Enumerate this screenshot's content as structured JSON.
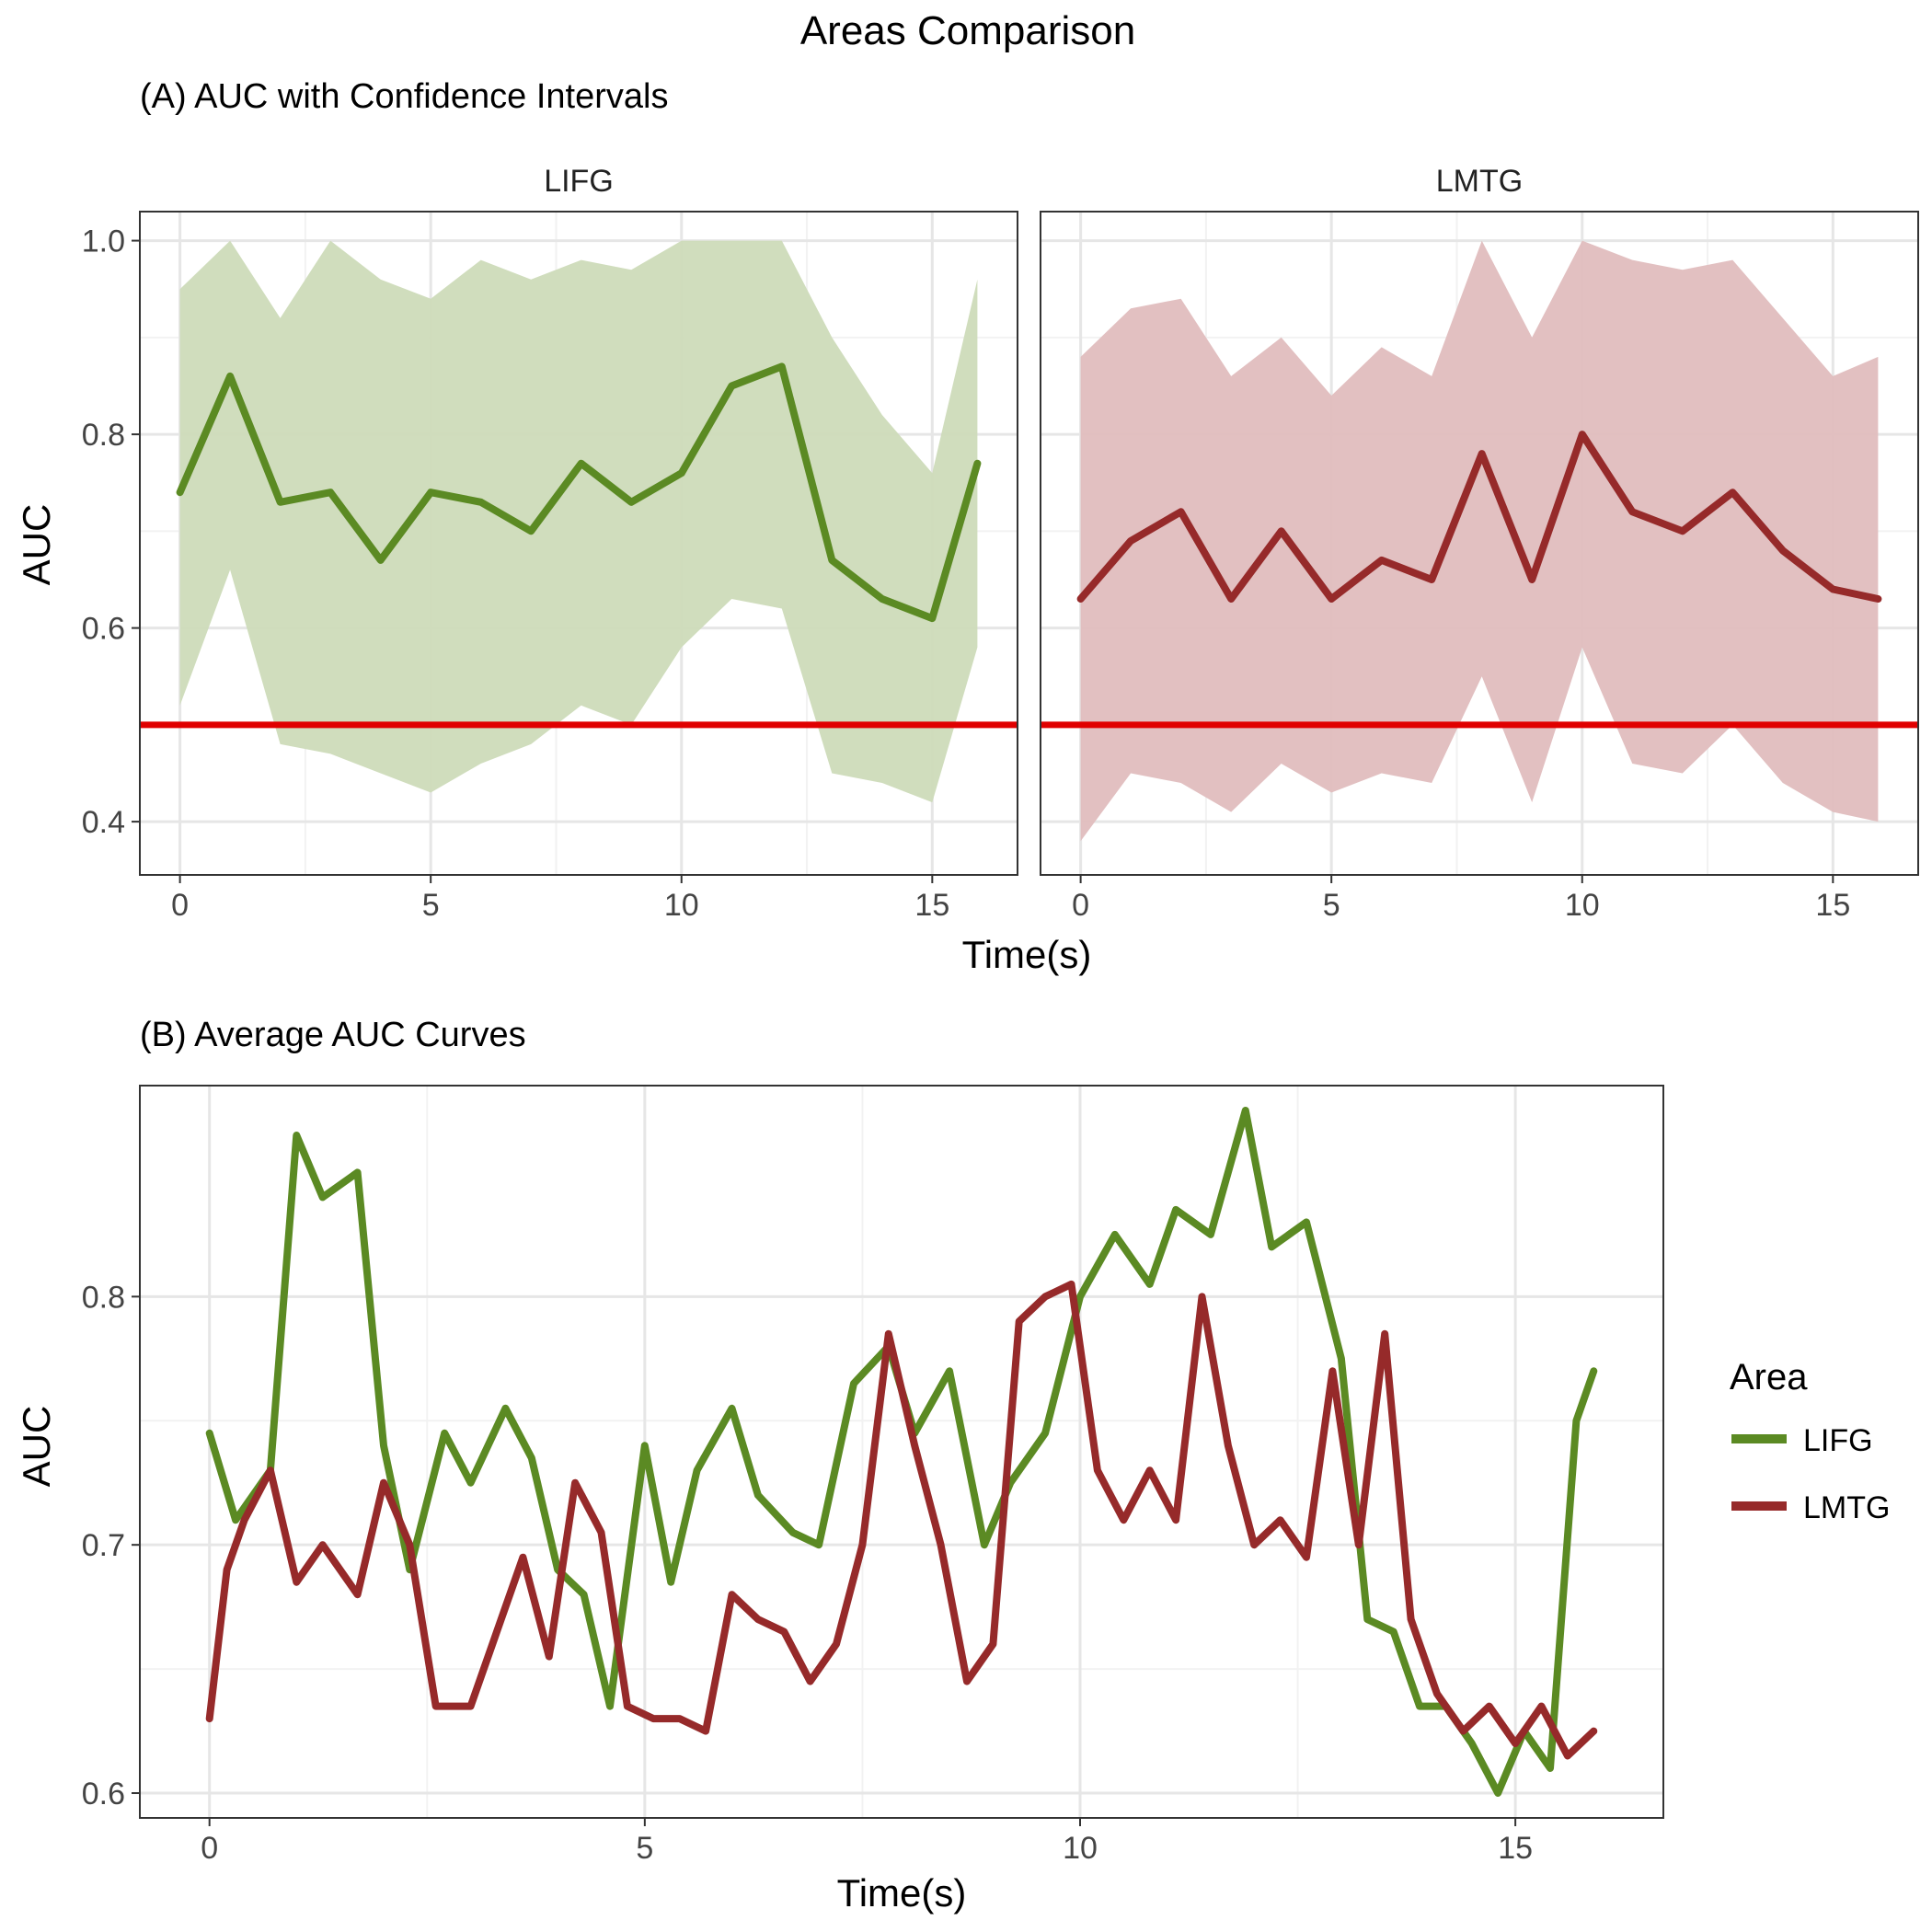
{
  "figure_title": "Areas Comparison",
  "colors": {
    "LIFG": "#5b8a23",
    "LMTG": "#962a2a",
    "LIFG_band": "#cddbb9",
    "LMTG_band": "#e0bdbe",
    "chance": "#e00000"
  },
  "chart_data": [
    {
      "type": "line",
      "panel": "A",
      "subtitle": "(A) AUC with Confidence Intervals",
      "xlabel": "Time(s)",
      "ylabel": "AUC",
      "xlim": [
        -0.8,
        16.7
      ],
      "ylim": [
        0.345,
        1.03
      ],
      "xticks": [
        0,
        5,
        10,
        15
      ],
      "yticks": [
        0.4,
        0.6,
        0.8,
        1.0
      ],
      "ytick_labels": [
        "0.4",
        "0.6",
        "0.8",
        "1.0"
      ],
      "grid": true,
      "reference_line": 0.5,
      "facets": [
        {
          "name": "LIFG",
          "x": [
            0,
            1,
            2,
            3,
            4,
            5,
            6,
            7,
            8,
            9,
            10,
            11,
            12,
            13,
            14,
            15,
            15.9
          ],
          "auc": [
            0.74,
            0.86,
            0.73,
            0.74,
            0.67,
            0.74,
            0.73,
            0.7,
            0.77,
            0.73,
            0.76,
            0.85,
            0.87,
            0.67,
            0.63,
            0.61,
            0.77
          ],
          "upper": [
            0.95,
            1.0,
            0.92,
            1.0,
            0.96,
            0.94,
            0.98,
            0.96,
            0.98,
            0.97,
            1.0,
            1.0,
            1.0,
            0.9,
            0.82,
            0.76,
            0.96
          ],
          "lower": [
            0.52,
            0.66,
            0.48,
            0.47,
            0.45,
            0.43,
            0.46,
            0.48,
            0.52,
            0.5,
            0.58,
            0.63,
            0.62,
            0.45,
            0.44,
            0.42,
            0.58
          ]
        },
        {
          "name": "LMTG",
          "x": [
            0,
            1,
            2,
            3,
            4,
            5,
            6,
            7,
            8,
            9,
            10,
            11,
            12,
            13,
            14,
            15,
            15.9
          ],
          "auc": [
            0.63,
            0.69,
            0.72,
            0.63,
            0.7,
            0.63,
            0.67,
            0.65,
            0.78,
            0.65,
            0.8,
            0.72,
            0.7,
            0.74,
            0.68,
            0.64,
            0.63
          ],
          "upper": [
            0.88,
            0.93,
            0.94,
            0.86,
            0.9,
            0.84,
            0.89,
            0.86,
            1.0,
            0.9,
            1.0,
            0.98,
            0.97,
            0.98,
            0.92,
            0.86,
            0.88
          ],
          "lower": [
            0.38,
            0.45,
            0.44,
            0.41,
            0.46,
            0.43,
            0.45,
            0.44,
            0.55,
            0.42,
            0.58,
            0.46,
            0.45,
            0.5,
            0.44,
            0.41,
            0.4
          ]
        }
      ]
    },
    {
      "type": "line",
      "panel": "B",
      "subtitle": "(B) Average AUC Curves",
      "xlabel": "Time(s)",
      "ylabel": "AUC",
      "xlim": [
        -0.8,
        16.7
      ],
      "ylim": [
        0.59,
        0.885
      ],
      "xticks": [
        0,
        5,
        10,
        15
      ],
      "yticks": [
        0.6,
        0.7,
        0.8
      ],
      "ytick_labels": [
        "0.6",
        "0.7",
        "0.8"
      ],
      "grid": true,
      "legend_title": "Area",
      "legend_position": "right",
      "series": [
        {
          "name": "LIFG",
          "x": [
            0,
            0.3,
            0.7,
            1.0,
            1.3,
            1.7,
            2.0,
            2.3,
            2.7,
            3.0,
            3.4,
            3.7,
            4.0,
            4.3,
            4.6,
            5.0,
            5.3,
            5.6,
            6.0,
            6.3,
            6.7,
            7.0,
            7.4,
            7.8,
            8.1,
            8.5,
            8.9,
            9.2,
            9.6,
            10.0,
            10.4,
            10.8,
            11.1,
            11.5,
            11.9,
            12.2,
            12.6,
            13.0,
            13.3,
            13.6,
            13.9,
            14.2,
            14.5,
            14.8,
            15.1,
            15.4,
            15.7,
            15.9
          ],
          "values": [
            0.745,
            0.71,
            0.73,
            0.865,
            0.84,
            0.85,
            0.74,
            0.69,
            0.745,
            0.725,
            0.755,
            0.735,
            0.69,
            0.68,
            0.635,
            0.74,
            0.685,
            0.73,
            0.755,
            0.72,
            0.705,
            0.7,
            0.765,
            0.78,
            0.745,
            0.77,
            0.7,
            0.725,
            0.745,
            0.8,
            0.825,
            0.805,
            0.835,
            0.825,
            0.875,
            0.82,
            0.83,
            0.775,
            0.67,
            0.665,
            0.635,
            0.635,
            0.62,
            0.6,
            0.625,
            0.61,
            0.75,
            0.77
          ]
        },
        {
          "name": "LMTG",
          "x": [
            0,
            0.2,
            0.4,
            0.7,
            1.0,
            1.3,
            1.7,
            2.0,
            2.3,
            2.6,
            3.0,
            3.3,
            3.6,
            3.9,
            4.2,
            4.5,
            4.8,
            5.1,
            5.4,
            5.7,
            6.0,
            6.3,
            6.6,
            6.9,
            7.2,
            7.5,
            7.8,
            8.1,
            8.4,
            8.7,
            9.0,
            9.3,
            9.6,
            9.9,
            10.2,
            10.5,
            10.8,
            11.1,
            11.4,
            11.7,
            12.0,
            12.3,
            12.6,
            12.9,
            13.2,
            13.5,
            13.8,
            14.1,
            14.4,
            14.7,
            15.0,
            15.3,
            15.6,
            15.9
          ],
          "values": [
            0.63,
            0.69,
            0.71,
            0.73,
            0.685,
            0.7,
            0.68,
            0.725,
            0.7,
            0.635,
            0.635,
            0.665,
            0.695,
            0.655,
            0.725,
            0.705,
            0.635,
            0.63,
            0.63,
            0.625,
            0.68,
            0.67,
            0.665,
            0.645,
            0.66,
            0.7,
            0.785,
            0.74,
            0.7,
            0.645,
            0.66,
            0.79,
            0.8,
            0.805,
            0.73,
            0.71,
            0.73,
            0.71,
            0.8,
            0.74,
            0.7,
            0.71,
            0.695,
            0.77,
            0.7,
            0.785,
            0.67,
            0.64,
            0.625,
            0.635,
            0.62,
            0.635,
            0.615,
            0.625
          ]
        }
      ]
    }
  ]
}
